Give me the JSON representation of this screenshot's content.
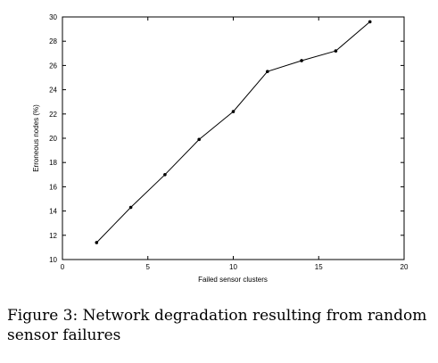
{
  "chart_data": {
    "type": "line",
    "title": "",
    "xlabel": "Failed sensor clusters",
    "ylabel": "Erroneous nodes (%)",
    "xlim": [
      0,
      20
    ],
    "ylim": [
      10,
      30
    ],
    "x_ticks": [
      0,
      5,
      10,
      15,
      20
    ],
    "y_ticks": [
      10,
      12,
      14,
      16,
      18,
      20,
      22,
      24,
      26,
      28,
      30
    ],
    "grid": false,
    "legend": "none",
    "line_color": "#000000",
    "x": [
      2,
      4,
      6,
      8,
      10,
      12,
      14,
      16,
      18
    ],
    "y": [
      11.4,
      14.3,
      17.0,
      19.9,
      22.2,
      25.5,
      26.4,
      27.2,
      29.6
    ]
  },
  "caption": "Figure 3: Network degradation resulting from random sensor failures"
}
